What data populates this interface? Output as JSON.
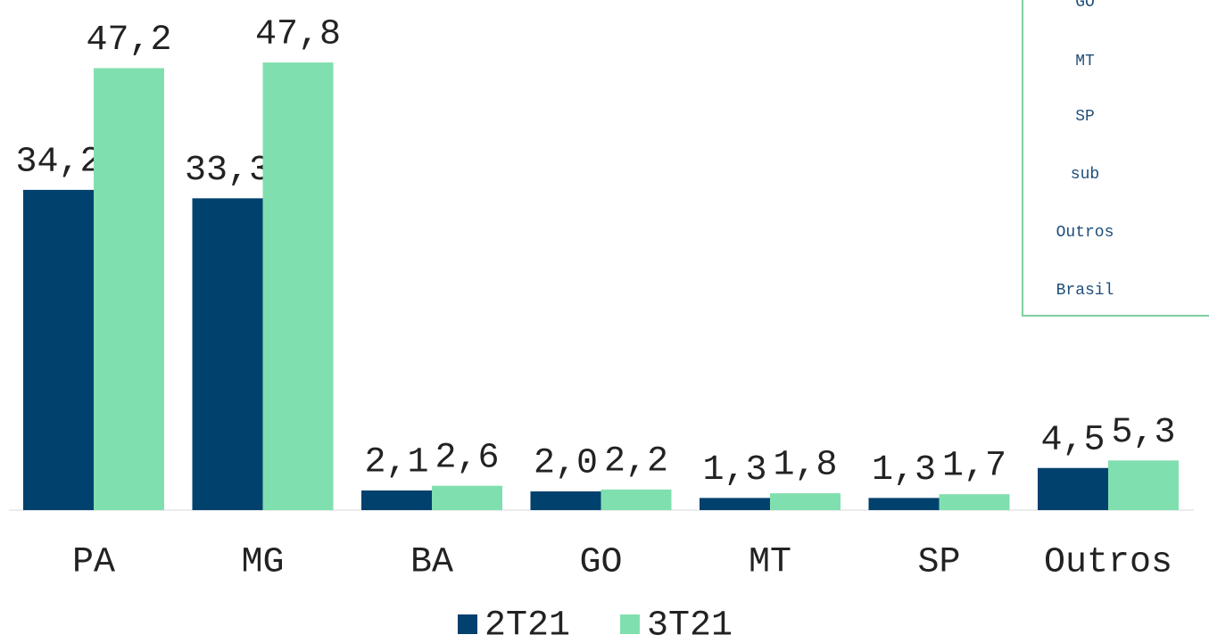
{
  "chart_data": {
    "type": "bar",
    "categories": [
      "PA",
      "MG",
      "BA",
      "GO",
      "MT",
      "SP",
      "Outros"
    ],
    "series": [
      {
        "name": "2T21",
        "color": "#00416e",
        "values": [
          34.2,
          33.3,
          2.1,
          2.0,
          1.3,
          1.3,
          4.5
        ],
        "value_labels": [
          "34,2",
          "33,3",
          "2,1",
          "2,0",
          "1,3",
          "1,3",
          "4,5"
        ]
      },
      {
        "name": "3T21",
        "color": "#80dfae",
        "values": [
          47.2,
          47.8,
          2.6,
          2.2,
          1.8,
          1.7,
          5.3
        ],
        "value_labels": [
          "47,2",
          "47,8",
          "2,6",
          "2,2",
          "1,8",
          "1,7",
          "5,3"
        ]
      }
    ],
    "legend": "bottom"
  },
  "table": {
    "rows": [
      "GO",
      "MT",
      "SP",
      "sub",
      "Outros",
      "Brasil"
    ]
  }
}
